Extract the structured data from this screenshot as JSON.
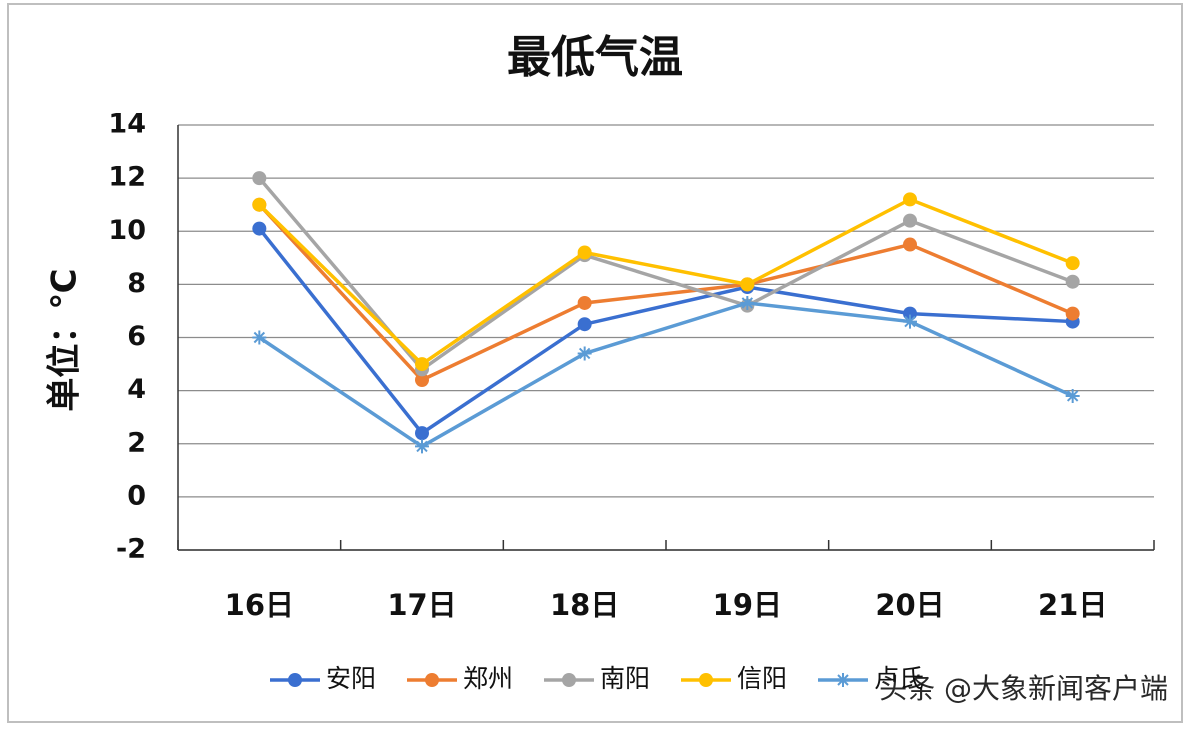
{
  "chart_data": {
    "type": "line",
    "title": "最低气温",
    "y_label": "单位：℃",
    "categories": [
      "16日",
      "17日",
      "18日",
      "19日",
      "20日",
      "21日"
    ],
    "series": [
      {
        "name": "安阳",
        "color": "#3a6fd0",
        "marker": "circle",
        "values": [
          10.1,
          2.4,
          6.5,
          7.9,
          6.9,
          6.6
        ]
      },
      {
        "name": "郑州",
        "color": "#ed7d31",
        "marker": "circle",
        "values": [
          11,
          4.4,
          7.3,
          8.0,
          9.5,
          6.9
        ]
      },
      {
        "name": "南阳",
        "color": "#a5a5a5",
        "marker": "circle",
        "values": [
          12,
          4.8,
          9.1,
          7.2,
          10.4,
          8.1
        ]
      },
      {
        "name": "信阳",
        "color": "#ffc000",
        "marker": "circle",
        "values": [
          11,
          5.0,
          9.2,
          8.0,
          11.2,
          8.8
        ]
      },
      {
        "name": "卢氏",
        "color": "#5b9bd5",
        "marker": "star",
        "values": [
          6.0,
          1.9,
          5.4,
          7.3,
          6.6,
          3.8
        ]
      }
    ],
    "ylim": [
      -2,
      14
    ],
    "yticks": [
      -2,
      0,
      2,
      4,
      6,
      8,
      10,
      12,
      14
    ],
    "grid": true,
    "legend": "bottom",
    "watermark": "头条 @大象新闻客户端"
  }
}
